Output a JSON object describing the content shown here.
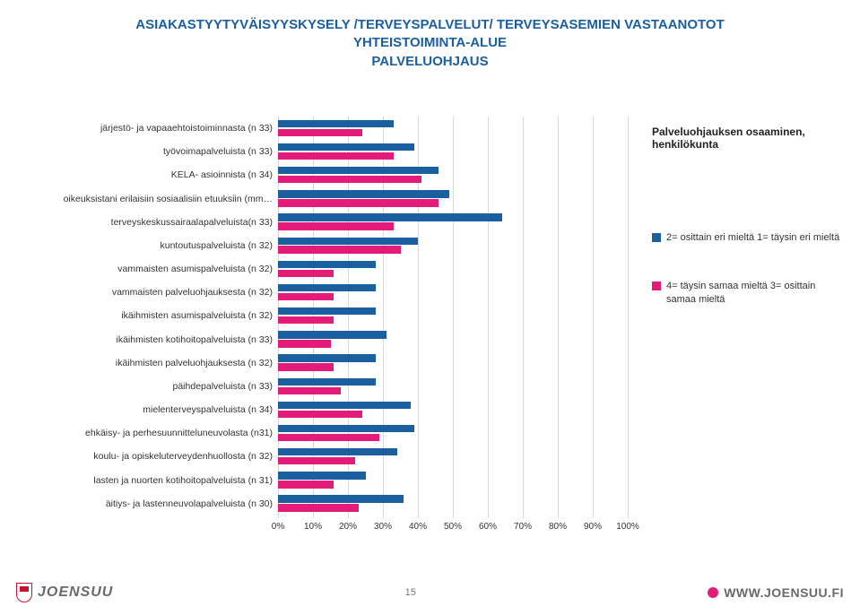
{
  "title": {
    "line1": "ASIAKASTYYTYVÄISYYSKYSELY /TERVEYSPALVELUT/ TERVEYSASEMIEN VASTAANOTOT",
    "line2": "YHTEISTOIMINTA-ALUE",
    "line3": "PALVELUOHJAUS",
    "color": "#1a5fa0",
    "fontsize": 15
  },
  "chart": {
    "type": "bar-horizontal-grouped",
    "xlim": [
      0,
      100
    ],
    "xtick_step": 10,
    "xtick_suffix": "%",
    "grid_color": "#d9d9d9",
    "background_color": "#ffffff",
    "label_fontsize": 10.5,
    "series": [
      {
        "name": "a",
        "color": "#1a5fa0"
      },
      {
        "name": "b",
        "color": "#e31c79"
      }
    ],
    "categories": [
      {
        "label": "järjestö- ja vapaaehtoistoiminnasta (n 33)",
        "a": 33,
        "b": 24
      },
      {
        "label": "työvoimapalveluista (n 33)",
        "a": 39,
        "b": 33
      },
      {
        "label": "KELA- asioinnista (n 34)",
        "a": 46,
        "b": 41
      },
      {
        "label": "oikeuksistani erilaisiin sosiaalisiin etuuksiin (mm…",
        "a": 49,
        "b": 46
      },
      {
        "label": "terveyskeskussairaalapalveluista(n 33)",
        "a": 64,
        "b": 33
      },
      {
        "label": "kuntoutuspalveluista (n 32)",
        "a": 40,
        "b": 35
      },
      {
        "label": "vammaisten asumispalveluista (n 32)",
        "a": 28,
        "b": 16
      },
      {
        "label": "vammaisten palveluohjauksesta (n 32)",
        "a": 28,
        "b": 16
      },
      {
        "label": "ikäihmisten asumispalveluista (n 32)",
        "a": 28,
        "b": 16
      },
      {
        "label": "ikäihmisten kotihoitopalveluista (n 33)",
        "a": 31,
        "b": 15
      },
      {
        "label": "ikäihmisten palveluohjauksesta (n 32)",
        "a": 28,
        "b": 16
      },
      {
        "label": "päihdepalveluista (n 33)",
        "a": 28,
        "b": 18
      },
      {
        "label": "mielenterveyspalveluista (n 34)",
        "a": 38,
        "b": 24
      },
      {
        "label": "ehkäisy- ja perhesuunnitteluneuvolasta (n31)",
        "a": 39,
        "b": 29
      },
      {
        "label": "koulu- ja opiskeluterveydenhuollosta (n 32)",
        "a": 34,
        "b": 22
      },
      {
        "label": "lasten ja nuorten kotihoitopalveluista (n 31)",
        "a": 25,
        "b": 16
      },
      {
        "label": "äitiys- ja lastenneuvolapalveluista (n 30)",
        "a": 36,
        "b": 23
      }
    ]
  },
  "legend": {
    "title": "Palveluohjauksen osaaminen, henkilökunta",
    "items": [
      {
        "color": "#1a5fa0",
        "text": "2= osittain eri mieltä 1= täysin eri mieltä"
      },
      {
        "color": "#e31c79",
        "text": "4= täysin samaa mieltä 3= osittain samaa mieltä"
      }
    ]
  },
  "footer": {
    "logo_left": "JOENSUU",
    "page": "15",
    "logo_right": "WWW.JOENSUU.FI"
  }
}
